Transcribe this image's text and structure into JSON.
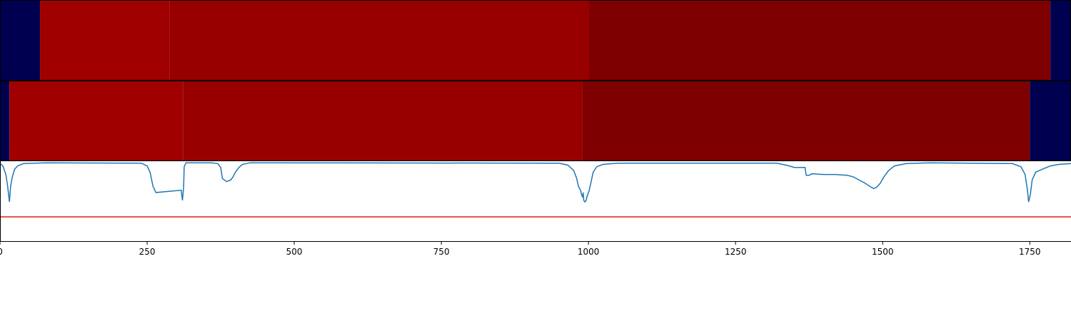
{
  "chart_data": {
    "type": "heatmap",
    "x_range": [
      0,
      1820
    ],
    "x_ticks": [
      0,
      250,
      500,
      750,
      1000,
      1250,
      1500,
      1750
    ],
    "tracks": [
      {
        "segments": [
          {
            "start": 0,
            "end": 68,
            "color": "#000050"
          },
          {
            "start": 68,
            "end": 288,
            "color": "#a00000"
          },
          {
            "start": 288,
            "end": 1001,
            "color": "#980000"
          },
          {
            "start": 1001,
            "end": 1785,
            "color": "#7e0000"
          },
          {
            "start": 1785,
            "end": 1820,
            "color": "#000050"
          }
        ]
      },
      {
        "segments": [
          {
            "start": 0,
            "end": 16,
            "color": "#000050"
          },
          {
            "start": 16,
            "end": 311,
            "color": "#a00000"
          },
          {
            "start": 311,
            "end": 990,
            "color": "#980000"
          },
          {
            "start": 990,
            "end": 1750,
            "color": "#7e0000"
          },
          {
            "start": 1750,
            "end": 1820,
            "color": "#000050"
          }
        ]
      }
    ],
    "line_panel": {
      "ylim": [
        -1.0,
        0.02
      ],
      "threshold": -0.69,
      "threshold_color": "#e41a1c",
      "series_color": "#1f77b4",
      "points": [
        [
          0,
          -0.01
        ],
        [
          5,
          -0.04
        ],
        [
          10,
          -0.15
        ],
        [
          13,
          -0.3
        ],
        [
          16,
          -0.5
        ],
        [
          18,
          -0.3
        ],
        [
          21,
          -0.18
        ],
        [
          25,
          -0.08
        ],
        [
          30,
          -0.04
        ],
        [
          40,
          -0.01
        ],
        [
          80,
          0
        ],
        [
          240,
          -0.005
        ],
        [
          250,
          -0.04
        ],
        [
          255,
          -0.12
        ],
        [
          260,
          -0.3
        ],
        [
          265,
          -0.38
        ],
        [
          308,
          -0.35
        ],
        [
          310,
          -0.48
        ],
        [
          312,
          -0.32
        ],
        [
          313,
          -0.05
        ],
        [
          316,
          0
        ],
        [
          360,
          0
        ],
        [
          370,
          -0.01
        ],
        [
          375,
          -0.06
        ],
        [
          378,
          -0.2
        ],
        [
          385,
          -0.24
        ],
        [
          392,
          -0.22
        ],
        [
          396,
          -0.18
        ],
        [
          400,
          -0.12
        ],
        [
          406,
          -0.06
        ],
        [
          412,
          -0.02
        ],
        [
          425,
          0
        ],
        [
          950,
          -0.005
        ],
        [
          965,
          -0.03
        ],
        [
          975,
          -0.1
        ],
        [
          980,
          -0.2
        ],
        [
          983,
          -0.3
        ],
        [
          985,
          -0.33
        ],
        [
          987,
          -0.36
        ],
        [
          988,
          -0.4
        ],
        [
          990,
          -0.44
        ],
        [
          991,
          -0.38
        ],
        [
          992,
          -0.48
        ],
        [
          994,
          -0.5
        ],
        [
          996,
          -0.48
        ],
        [
          998,
          -0.42
        ],
        [
          1001,
          -0.36
        ],
        [
          1004,
          -0.26
        ],
        [
          1008,
          -0.12
        ],
        [
          1014,
          -0.05
        ],
        [
          1025,
          -0.02
        ],
        [
          1050,
          -0.005
        ],
        [
          1320,
          -0.005
        ],
        [
          1336,
          -0.03
        ],
        [
          1350,
          -0.06
        ],
        [
          1368,
          -0.06
        ],
        [
          1370,
          -0.16
        ],
        [
          1375,
          -0.16
        ],
        [
          1380,
          -0.14
        ],
        [
          1400,
          -0.15
        ],
        [
          1420,
          -0.15
        ],
        [
          1440,
          -0.16
        ],
        [
          1450,
          -0.18
        ],
        [
          1460,
          -0.22
        ],
        [
          1470,
          -0.26
        ],
        [
          1480,
          -0.31
        ],
        [
          1485,
          -0.33
        ],
        [
          1490,
          -0.31
        ],
        [
          1496,
          -0.26
        ],
        [
          1502,
          -0.18
        ],
        [
          1510,
          -0.1
        ],
        [
          1520,
          -0.04
        ],
        [
          1540,
          -0.01
        ],
        [
          1580,
          0
        ],
        [
          1720,
          -0.01
        ],
        [
          1735,
          -0.05
        ],
        [
          1742,
          -0.15
        ],
        [
          1746,
          -0.35
        ],
        [
          1748,
          -0.5
        ],
        [
          1751,
          -0.4
        ],
        [
          1754,
          -0.22
        ],
        [
          1760,
          -0.12
        ],
        [
          1772,
          -0.08
        ],
        [
          1785,
          -0.04
        ],
        [
          1800,
          -0.02
        ],
        [
          1820,
          -0.01
        ]
      ]
    }
  }
}
